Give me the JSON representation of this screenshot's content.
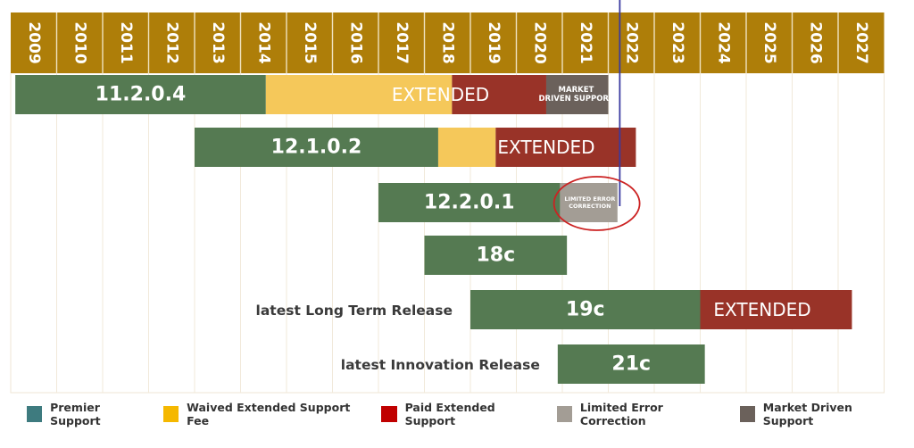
{
  "chart_data": {
    "type": "gantt",
    "title": "",
    "years": [
      "2009",
      "2010",
      "2011",
      "2012",
      "2013",
      "2014",
      "2015",
      "2016",
      "2017",
      "2018",
      "2019",
      "2020",
      "2021",
      "2022",
      "2023",
      "2024",
      "2025",
      "2026",
      "2027"
    ],
    "colors": {
      "header": "#ae7e09",
      "premier": "#557a52",
      "waived": "#f5c85a",
      "paid": "#993328",
      "limited": "#a39d95",
      "market": "#6b615b",
      "marker_line": "#3a3aa0",
      "highlight_circle": "#cc2222"
    },
    "releases": [
      {
        "name": "11.2.0.4",
        "label_prefix": "",
        "segments": [
          {
            "kind": "premier",
            "start": 2009.1,
            "end": 2014.55
          },
          {
            "kind": "waived",
            "start": 2014.55,
            "end": 2018.6
          },
          {
            "kind": "paid",
            "start": 2018.6,
            "end": 2020.65
          },
          {
            "kind": "market",
            "start": 2020.65,
            "end": 2022.0
          }
        ],
        "overlays": [
          {
            "text": "EXTENDED",
            "center": 2018.35
          },
          {
            "text": "MARKET\nDRIVEN SUPPORT",
            "center": 2021.3
          }
        ]
      },
      {
        "name": "12.1.0.2",
        "label_prefix": "",
        "segments": [
          {
            "kind": "premier",
            "start": 2013.0,
            "end": 2018.3
          },
          {
            "kind": "waived",
            "start": 2018.3,
            "end": 2019.55
          },
          {
            "kind": "paid",
            "start": 2019.55,
            "end": 2022.6
          }
        ],
        "overlays": [
          {
            "text": "EXTENDED",
            "center": 2020.65
          }
        ]
      },
      {
        "name": "12.2.0.1",
        "label_prefix": "",
        "segments": [
          {
            "kind": "premier",
            "start": 2017.0,
            "end": 2020.95
          },
          {
            "kind": "limited",
            "start": 2020.95,
            "end": 2022.2
          }
        ],
        "overlays": [
          {
            "text": "LIMITED ERROR\nCORRECTION",
            "center": 2021.6
          }
        ]
      },
      {
        "name": "18c",
        "label_prefix": "",
        "segments": [
          {
            "kind": "premier",
            "start": 2018.0,
            "end": 2021.1
          }
        ],
        "overlays": []
      },
      {
        "name": "19c",
        "label_prefix": "latest Long Term Release",
        "segments": [
          {
            "kind": "premier",
            "start": 2019.0,
            "end": 2024.0
          },
          {
            "kind": "paid",
            "start": 2024.0,
            "end": 2027.3
          }
        ],
        "overlays": [
          {
            "text": "EXTENDED",
            "center": 2025.35
          }
        ]
      },
      {
        "name": "21c",
        "label_prefix": "latest Innovation Release",
        "segments": [
          {
            "kind": "premier",
            "start": 2020.9,
            "end": 2024.1
          }
        ],
        "overlays": []
      }
    ],
    "marker_year": 2022.25,
    "highlight": {
      "release": "12.2.0.1",
      "center": 2021.75
    }
  },
  "legend": [
    {
      "label": "Premier Support",
      "color": "#3e7b7f"
    },
    {
      "label": "Waived Extended Support Fee",
      "color": "#f5b800"
    },
    {
      "label": "Paid Extended Support",
      "color": "#c00000"
    },
    {
      "label": "Limited Error Correction",
      "color": "#a39d95"
    },
    {
      "label": "Market Driven Support",
      "color": "#6b615b"
    }
  ]
}
